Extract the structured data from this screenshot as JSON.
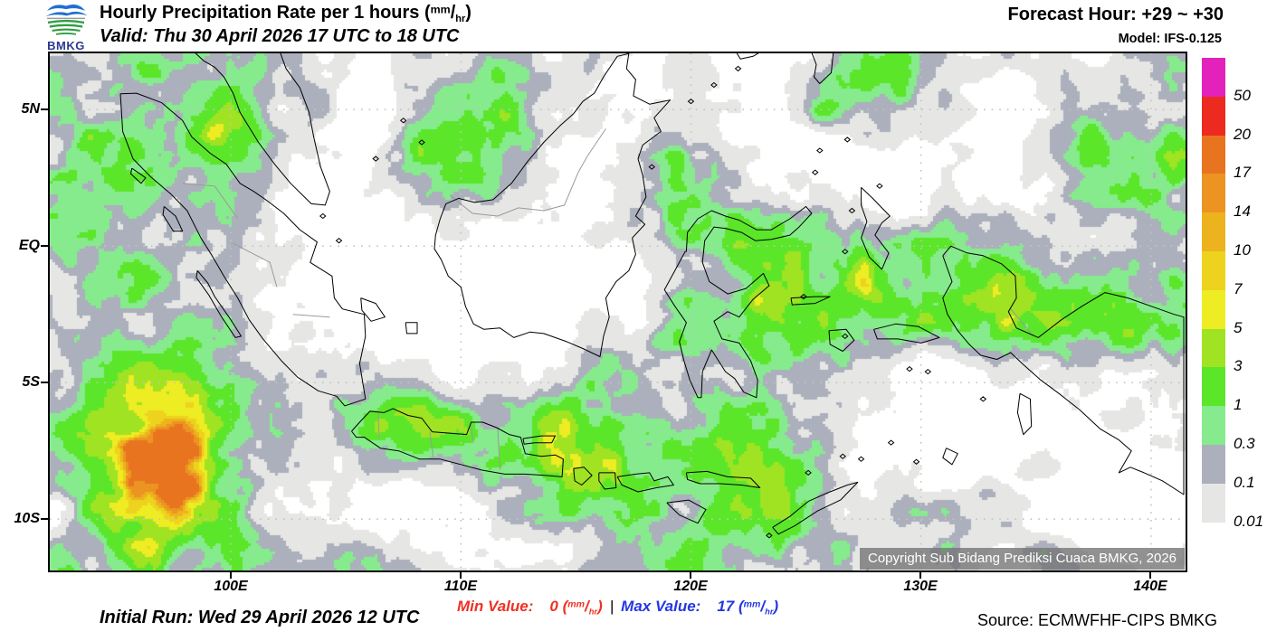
{
  "header": {
    "logo_text": "BMKG",
    "title": "Hourly Precipitation Rate per 1 hours ",
    "valid": "Valid: Thu 30 April 2026 17 UTC to 18 UTC",
    "forecast_hour": "Forecast Hour: +29 ~ +30",
    "model": "Model: IFS-0.125"
  },
  "unit": {
    "open": "(",
    "num": "mm",
    "slash": "/",
    "den": "hr",
    "close": ")"
  },
  "map": {
    "copyright": "Copyright Sub Bidang Prediksi Cuaca BMKG, 2026",
    "lat_labels": [
      "5N",
      "EQ",
      "5S",
      "10S"
    ],
    "lon_labels": [
      "100E",
      "110E",
      "120E",
      "130E",
      "140E"
    ]
  },
  "legend": {
    "levels": [
      {
        "value": "50",
        "color": "#E321BB"
      },
      {
        "value": "20",
        "color": "#ED2A1F"
      },
      {
        "value": "17",
        "color": "#E8741F"
      },
      {
        "value": "14",
        "color": "#EC9421"
      },
      {
        "value": "10",
        "color": "#EDB31E"
      },
      {
        "value": "7",
        "color": "#EDD31E"
      },
      {
        "value": "5",
        "color": "#EEEC22"
      },
      {
        "value": "3",
        "color": "#9FE323"
      },
      {
        "value": "1",
        "color": "#5BE62A"
      },
      {
        "value": "0.3",
        "color": "#86EB8C"
      },
      {
        "value": "0.1",
        "color": "#ABB0BC"
      },
      {
        "value": "0.01",
        "color": "#E6E6E4"
      }
    ]
  },
  "footer": {
    "initial_run": "Initial Run: Wed 29 April 2026 12 UTC",
    "min_label": "Min Value:",
    "min_value": "0 ",
    "separator": "|",
    "max_label": "Max Value:",
    "max_value": "17 ",
    "source": "Source: ECMWFHF-CIPS BMKG"
  },
  "colors": {
    "min_value": "#EF3124",
    "max_value": "#2438E0",
    "logo_blue": "#1f6fd0",
    "logo_green": "#2f9e41"
  }
}
